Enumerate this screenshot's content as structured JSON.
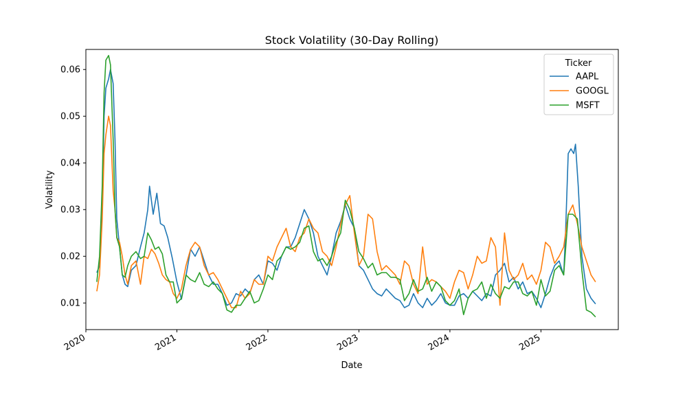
{
  "chart_data": {
    "type": "line",
    "title": "Stock Volatility (30-Day Rolling)",
    "xlabel": "Date",
    "ylabel": "Volatility",
    "xlim": [
      2020.0,
      2025.85
    ],
    "ylim": [
      0.0043,
      0.0643
    ],
    "x_ticks": [
      {
        "value": 2020,
        "label": "2020"
      },
      {
        "value": 2021,
        "label": "2021"
      },
      {
        "value": 2022,
        "label": "2022"
      },
      {
        "value": 2023,
        "label": "2023"
      },
      {
        "value": 2024,
        "label": "2024"
      },
      {
        "value": 2025,
        "label": "2025"
      }
    ],
    "y_ticks": [
      {
        "value": 0.01,
        "label": "0.01"
      },
      {
        "value": 0.02,
        "label": "0.02"
      },
      {
        "value": 0.03,
        "label": "0.03"
      },
      {
        "value": 0.04,
        "label": "0.04"
      },
      {
        "value": 0.05,
        "label": "0.05"
      },
      {
        "value": 0.06,
        "label": "0.06"
      }
    ],
    "grid": false,
    "legend": {
      "title": "Ticker",
      "placement": "top-right"
    },
    "series": [
      {
        "name": "AAPL",
        "color": "#1f77b4",
        "x": [
          2020.12,
          2020.15,
          2020.18,
          2020.2,
          2020.22,
          2020.25,
          2020.27,
          2020.3,
          2020.32,
          2020.34,
          2020.37,
          2020.4,
          2020.43,
          2020.46,
          2020.5,
          2020.55,
          2020.6,
          2020.64,
          2020.68,
          2020.7,
          2020.74,
          2020.78,
          2020.82,
          2020.86,
          2020.9,
          2020.95,
          2021.0,
          2021.05,
          2021.1,
          2021.15,
          2021.2,
          2021.25,
          2021.3,
          2021.35,
          2021.4,
          2021.45,
          2021.5,
          2021.55,
          2021.6,
          2021.65,
          2021.7,
          2021.75,
          2021.8,
          2021.85,
          2021.9,
          2021.95,
          2022.0,
          2022.05,
          2022.1,
          2022.15,
          2022.2,
          2022.25,
          2022.3,
          2022.35,
          2022.4,
          2022.45,
          2022.5,
          2022.55,
          2022.6,
          2022.65,
          2022.7,
          2022.75,
          2022.8,
          2022.85,
          2022.9,
          2022.95,
          2023.0,
          2023.05,
          2023.1,
          2023.15,
          2023.2,
          2023.25,
          2023.3,
          2023.35,
          2023.4,
          2023.45,
          2023.5,
          2023.55,
          2023.6,
          2023.65,
          2023.7,
          2023.75,
          2023.8,
          2023.85,
          2023.9,
          2023.95,
          2024.0,
          2024.05,
          2024.1,
          2024.15,
          2024.2,
          2024.25,
          2024.3,
          2024.35,
          2024.4,
          2024.45,
          2024.5,
          2024.55,
          2024.6,
          2024.65,
          2024.7,
          2024.75,
          2024.8,
          2024.85,
          2024.9,
          2024.95,
          2025.0,
          2025.05,
          2025.1,
          2025.15,
          2025.2,
          2025.25,
          2025.27,
          2025.3,
          2025.33,
          2025.36,
          2025.38,
          2025.41,
          2025.45,
          2025.5,
          2025.55,
          2025.6
        ],
        "y": [
          0.0165,
          0.018,
          0.03,
          0.05,
          0.056,
          0.058,
          0.06,
          0.057,
          0.045,
          0.028,
          0.022,
          0.016,
          0.014,
          0.0135,
          0.017,
          0.018,
          0.022,
          0.025,
          0.03,
          0.035,
          0.029,
          0.0335,
          0.027,
          0.0265,
          0.024,
          0.0195,
          0.0145,
          0.0108,
          0.0158,
          0.0215,
          0.02,
          0.022,
          0.019,
          0.016,
          0.014,
          0.014,
          0.012,
          0.0095,
          0.01,
          0.012,
          0.0115,
          0.013,
          0.012,
          0.015,
          0.016,
          0.014,
          0.019,
          0.0185,
          0.017,
          0.02,
          0.022,
          0.022,
          0.024,
          0.027,
          0.03,
          0.028,
          0.025,
          0.02,
          0.018,
          0.016,
          0.02,
          0.025,
          0.0275,
          0.031,
          0.028,
          0.026,
          0.018,
          0.017,
          0.015,
          0.013,
          0.012,
          0.0115,
          0.013,
          0.012,
          0.011,
          0.0105,
          0.009,
          0.0095,
          0.012,
          0.01,
          0.009,
          0.011,
          0.0095,
          0.0105,
          0.012,
          0.01,
          0.0095,
          0.0095,
          0.0115,
          0.012,
          0.011,
          0.0125,
          0.0115,
          0.0105,
          0.012,
          0.0115,
          0.016,
          0.017,
          0.0185,
          0.0145,
          0.0155,
          0.013,
          0.0145,
          0.012,
          0.0125,
          0.011,
          0.009,
          0.012,
          0.0155,
          0.018,
          0.019,
          0.016,
          0.025,
          0.042,
          0.043,
          0.042,
          0.044,
          0.035,
          0.02,
          0.013,
          0.011,
          0.0098
        ]
      },
      {
        "name": "GOOGL",
        "color": "#ff7f0e",
        "x": [
          2020.12,
          2020.15,
          2020.18,
          2020.2,
          2020.22,
          2020.25,
          2020.27,
          2020.3,
          2020.32,
          2020.34,
          2020.37,
          2020.4,
          2020.43,
          2020.46,
          2020.5,
          2020.55,
          2020.6,
          2020.64,
          2020.68,
          2020.72,
          2020.76,
          2020.8,
          2020.84,
          2020.88,
          2020.92,
          2020.96,
          2021.0,
          2021.05,
          2021.1,
          2021.15,
          2021.2,
          2021.25,
          2021.3,
          2021.35,
          2021.4,
          2021.45,
          2021.5,
          2021.55,
          2021.6,
          2021.65,
          2021.7,
          2021.75,
          2021.8,
          2021.85,
          2021.9,
          2021.95,
          2022.0,
          2022.05,
          2022.1,
          2022.15,
          2022.2,
          2022.25,
          2022.3,
          2022.35,
          2022.4,
          2022.45,
          2022.5,
          2022.55,
          2022.6,
          2022.65,
          2022.7,
          2022.75,
          2022.8,
          2022.85,
          2022.9,
          2022.95,
          2023.0,
          2023.05,
          2023.1,
          2023.15,
          2023.2,
          2023.25,
          2023.3,
          2023.35,
          2023.4,
          2023.45,
          2023.5,
          2023.55,
          2023.6,
          2023.65,
          2023.7,
          2023.75,
          2023.8,
          2023.85,
          2023.9,
          2023.95,
          2024.0,
          2024.05,
          2024.1,
          2024.15,
          2024.2,
          2024.25,
          2024.3,
          2024.35,
          2024.4,
          2024.45,
          2024.5,
          2024.55,
          2024.6,
          2024.65,
          2024.7,
          2024.75,
          2024.8,
          2024.85,
          2024.9,
          2024.95,
          2025.0,
          2025.05,
          2025.1,
          2025.15,
          2025.2,
          2025.25,
          2025.3,
          2025.35,
          2025.4,
          2025.45,
          2025.5,
          2025.55,
          2025.6
        ],
        "y": [
          0.0125,
          0.016,
          0.028,
          0.042,
          0.046,
          0.05,
          0.048,
          0.034,
          0.03,
          0.024,
          0.023,
          0.02,
          0.016,
          0.014,
          0.018,
          0.019,
          0.014,
          0.02,
          0.0195,
          0.0215,
          0.0205,
          0.0185,
          0.016,
          0.015,
          0.0145,
          0.012,
          0.011,
          0.013,
          0.018,
          0.0215,
          0.023,
          0.022,
          0.018,
          0.016,
          0.0165,
          0.015,
          0.013,
          0.011,
          0.009,
          0.009,
          0.0125,
          0.011,
          0.012,
          0.015,
          0.014,
          0.014,
          0.02,
          0.019,
          0.022,
          0.024,
          0.026,
          0.022,
          0.021,
          0.024,
          0.025,
          0.028,
          0.026,
          0.025,
          0.021,
          0.02,
          0.018,
          0.022,
          0.027,
          0.031,
          0.033,
          0.025,
          0.018,
          0.02,
          0.029,
          0.028,
          0.021,
          0.017,
          0.018,
          0.017,
          0.016,
          0.014,
          0.019,
          0.018,
          0.014,
          0.012,
          0.022,
          0.014,
          0.015,
          0.0145,
          0.0135,
          0.0125,
          0.011,
          0.0145,
          0.017,
          0.0165,
          0.013,
          0.016,
          0.02,
          0.0185,
          0.019,
          0.024,
          0.022,
          0.0095,
          0.025,
          0.017,
          0.015,
          0.016,
          0.0185,
          0.015,
          0.016,
          0.014,
          0.017,
          0.023,
          0.022,
          0.0185,
          0.02,
          0.022,
          0.029,
          0.031,
          0.027,
          0.022,
          0.019,
          0.016,
          0.0145
        ]
      },
      {
        "name": "MSFT",
        "color": "#2ca02c",
        "x": [
          2020.12,
          2020.15,
          2020.18,
          2020.2,
          2020.22,
          2020.25,
          2020.27,
          2020.3,
          2020.32,
          2020.34,
          2020.37,
          2020.4,
          2020.43,
          2020.46,
          2020.5,
          2020.55,
          2020.6,
          2020.64,
          2020.68,
          2020.72,
          2020.76,
          2020.8,
          2020.84,
          2020.88,
          2020.92,
          2020.96,
          2021.0,
          2021.05,
          2021.1,
          2021.15,
          2021.2,
          2021.25,
          2021.3,
          2021.35,
          2021.4,
          2021.45,
          2021.5,
          2021.55,
          2021.6,
          2021.65,
          2021.7,
          2021.75,
          2021.8,
          2021.85,
          2021.9,
          2021.95,
          2022.0,
          2022.05,
          2022.1,
          2022.15,
          2022.2,
          2022.25,
          2022.3,
          2022.35,
          2022.4,
          2022.45,
          2022.5,
          2022.55,
          2022.6,
          2022.65,
          2022.7,
          2022.75,
          2022.8,
          2022.85,
          2022.9,
          2022.95,
          2023.0,
          2023.05,
          2023.1,
          2023.15,
          2023.2,
          2023.25,
          2023.3,
          2023.35,
          2023.4,
          2023.45,
          2023.5,
          2023.55,
          2023.6,
          2023.65,
          2023.7,
          2023.75,
          2023.8,
          2023.85,
          2023.9,
          2023.95,
          2024.0,
          2024.05,
          2024.1,
          2024.15,
          2024.2,
          2024.25,
          2024.3,
          2024.35,
          2024.4,
          2024.45,
          2024.5,
          2024.55,
          2024.6,
          2024.65,
          2024.7,
          2024.75,
          2024.8,
          2024.85,
          2024.9,
          2024.95,
          2025.0,
          2025.05,
          2025.1,
          2025.15,
          2025.2,
          2025.25,
          2025.3,
          2025.35,
          2025.4,
          2025.45,
          2025.5,
          2025.55,
          2025.6
        ],
        "y": [
          0.0145,
          0.02,
          0.035,
          0.055,
          0.062,
          0.063,
          0.061,
          0.045,
          0.03,
          0.024,
          0.022,
          0.016,
          0.0155,
          0.018,
          0.02,
          0.021,
          0.0195,
          0.02,
          0.025,
          0.0235,
          0.0215,
          0.022,
          0.0205,
          0.016,
          0.0145,
          0.0145,
          0.01,
          0.011,
          0.016,
          0.015,
          0.0145,
          0.0165,
          0.014,
          0.0135,
          0.0145,
          0.013,
          0.012,
          0.0085,
          0.008,
          0.0095,
          0.0095,
          0.011,
          0.0125,
          0.01,
          0.0105,
          0.013,
          0.016,
          0.015,
          0.019,
          0.02,
          0.022,
          0.0215,
          0.022,
          0.023,
          0.026,
          0.0265,
          0.021,
          0.019,
          0.0195,
          0.018,
          0.02,
          0.023,
          0.025,
          0.032,
          0.03,
          0.026,
          0.021,
          0.0195,
          0.0175,
          0.0185,
          0.016,
          0.0165,
          0.0165,
          0.0155,
          0.0155,
          0.015,
          0.0105,
          0.012,
          0.015,
          0.0125,
          0.013,
          0.0155,
          0.0125,
          0.0145,
          0.0135,
          0.0105,
          0.0095,
          0.0105,
          0.013,
          0.0075,
          0.011,
          0.0125,
          0.013,
          0.0145,
          0.011,
          0.014,
          0.012,
          0.011,
          0.0135,
          0.013,
          0.0145,
          0.0145,
          0.012,
          0.0115,
          0.0125,
          0.0095,
          0.015,
          0.0115,
          0.0125,
          0.017,
          0.018,
          0.016,
          0.029,
          0.029,
          0.028,
          0.017,
          0.0085,
          0.008,
          0.007
        ]
      }
    ]
  }
}
